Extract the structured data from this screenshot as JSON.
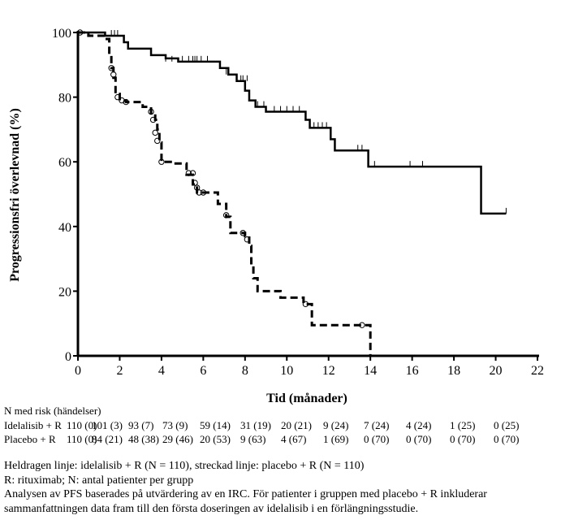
{
  "chart_data": {
    "type": "line",
    "title": "",
    "xlabel": "Tid (månader)",
    "ylabel": "Progressionsfri överlevnad (%)",
    "xlim": [
      0,
      22
    ],
    "ylim": [
      0,
      100
    ],
    "xticks": [
      "0",
      "2",
      "4",
      "6",
      "8",
      "10",
      "12",
      "14",
      "16",
      "18",
      "20",
      "22"
    ],
    "yticks": [
      "0",
      "20",
      "40",
      "60",
      "80",
      "100"
    ],
    "series": [
      {
        "name": "Idelalisib + R",
        "style": "solid",
        "steps": [
          [
            0,
            100
          ],
          [
            1.3,
            99
          ],
          [
            2.2,
            97
          ],
          [
            2.4,
            95
          ],
          [
            3.5,
            93
          ],
          [
            4.2,
            92
          ],
          [
            4.8,
            91
          ],
          [
            6.8,
            89
          ],
          [
            7.2,
            87
          ],
          [
            7.6,
            85
          ],
          [
            8.0,
            82
          ],
          [
            8.2,
            79
          ],
          [
            8.5,
            77
          ],
          [
            9.0,
            75.5
          ],
          [
            10.9,
            73
          ],
          [
            11.1,
            70.5
          ],
          [
            12.1,
            67
          ],
          [
            12.3,
            63.5
          ],
          [
            13.9,
            58.5
          ],
          [
            19.3,
            44
          ],
          [
            20.5,
            44
          ]
        ],
        "censored": [
          [
            1.6,
            99
          ],
          [
            1.75,
            99
          ],
          [
            1.9,
            99
          ],
          [
            4.2,
            91
          ],
          [
            4.5,
            91
          ],
          [
            5.0,
            91
          ],
          [
            5.3,
            91
          ],
          [
            5.5,
            91
          ],
          [
            5.6,
            91
          ],
          [
            5.7,
            91
          ],
          [
            5.9,
            91
          ],
          [
            6.2,
            91
          ],
          [
            7.1,
            87
          ],
          [
            7.8,
            85
          ],
          [
            7.9,
            85
          ],
          [
            8.1,
            85
          ],
          [
            8.6,
            77
          ],
          [
            8.9,
            77
          ],
          [
            9.4,
            75.5
          ],
          [
            9.7,
            75.5
          ],
          [
            10.0,
            75.5
          ],
          [
            10.3,
            75.5
          ],
          [
            10.6,
            75.5
          ],
          [
            11.3,
            70.5
          ],
          [
            11.5,
            70.5
          ],
          [
            11.7,
            70.5
          ],
          [
            11.9,
            70.5
          ],
          [
            13.4,
            63.5
          ],
          [
            13.6,
            63.5
          ],
          [
            14.2,
            58.5
          ],
          [
            15.9,
            58.5
          ],
          [
            16.5,
            58.5
          ],
          [
            20.5,
            44
          ]
        ]
      },
      {
        "name": "Placebo + R",
        "style": "dashed",
        "steps": [
          [
            0,
            100
          ],
          [
            0.5,
            99
          ],
          [
            1.3,
            98
          ],
          [
            1.5,
            93
          ],
          [
            1.6,
            89
          ],
          [
            1.7,
            86
          ],
          [
            1.8,
            81
          ],
          [
            2.0,
            79
          ],
          [
            2.3,
            78.5
          ],
          [
            3.1,
            77
          ],
          [
            3.5,
            75
          ],
          [
            3.7,
            73
          ],
          [
            3.8,
            70
          ],
          [
            3.9,
            66
          ],
          [
            4.0,
            60
          ],
          [
            4.6,
            59.5
          ],
          [
            5.2,
            56
          ],
          [
            5.5,
            53
          ],
          [
            5.7,
            50.5
          ],
          [
            6.3,
            50.5
          ],
          [
            6.7,
            47
          ],
          [
            7.1,
            43
          ],
          [
            7.3,
            38
          ],
          [
            8.0,
            37
          ],
          [
            8.2,
            34
          ],
          [
            8.3,
            28
          ],
          [
            8.4,
            24
          ],
          [
            8.6,
            20
          ],
          [
            9.7,
            18
          ],
          [
            10.8,
            16
          ],
          [
            11.2,
            9.5
          ],
          [
            13.7,
            9.5
          ],
          [
            14.0,
            0
          ]
        ],
        "censored": [
          [
            0.1,
            100
          ],
          [
            1.6,
            89
          ],
          [
            1.7,
            87
          ],
          [
            1.9,
            80
          ],
          [
            2.1,
            79
          ],
          [
            2.3,
            78.5
          ],
          [
            3.5,
            75.5
          ],
          [
            3.6,
            73
          ],
          [
            3.7,
            69
          ],
          [
            3.8,
            66.5
          ],
          [
            4.0,
            60
          ],
          [
            5.3,
            56.5
          ],
          [
            5.5,
            56.5
          ],
          [
            5.6,
            53.5
          ],
          [
            5.7,
            52
          ],
          [
            5.8,
            50.5
          ],
          [
            6.0,
            50.5
          ],
          [
            7.1,
            43.5
          ],
          [
            7.9,
            38
          ],
          [
            8.1,
            36
          ],
          [
            10.9,
            16
          ],
          [
            13.6,
            9.5
          ]
        ]
      }
    ]
  },
  "risk_table": {
    "title": "N med risk (händelser)",
    "rows": [
      {
        "label": "Idelalisib + R",
        "values": [
          "110 (0)",
          "101 (3)",
          "93 (7)",
          "73 (9)",
          "59 (14)",
          "31 (19)",
          "20 (21)",
          "9 (24)",
          "7 (24)",
          "4 (24)",
          "1 (25)",
          "0 (25)"
        ]
      },
      {
        "label": "Placebo + R",
        "values": [
          "110 (0)",
          "84 (21)",
          "48 (38)",
          "29 (46)",
          "20 (53)",
          "9 (63)",
          "4 (67)",
          "1 (69)",
          "0 (70)",
          "0 (70)",
          "0 (70)",
          "0 (70)"
        ]
      }
    ]
  },
  "footnotes": [
    "Heldragen linje: idelalisib + R (N = 110), streckad linje: placebo + R (N = 110)",
    "R: rituximab; N: antal patienter per grupp",
    "Analysen av PFS baserades på utvärdering av en IRC. För patienter i gruppen med placebo + R inkluderar",
    "sammanfattningen data fram till den första doseringen av idelalisib i en förlängningsstudie."
  ]
}
